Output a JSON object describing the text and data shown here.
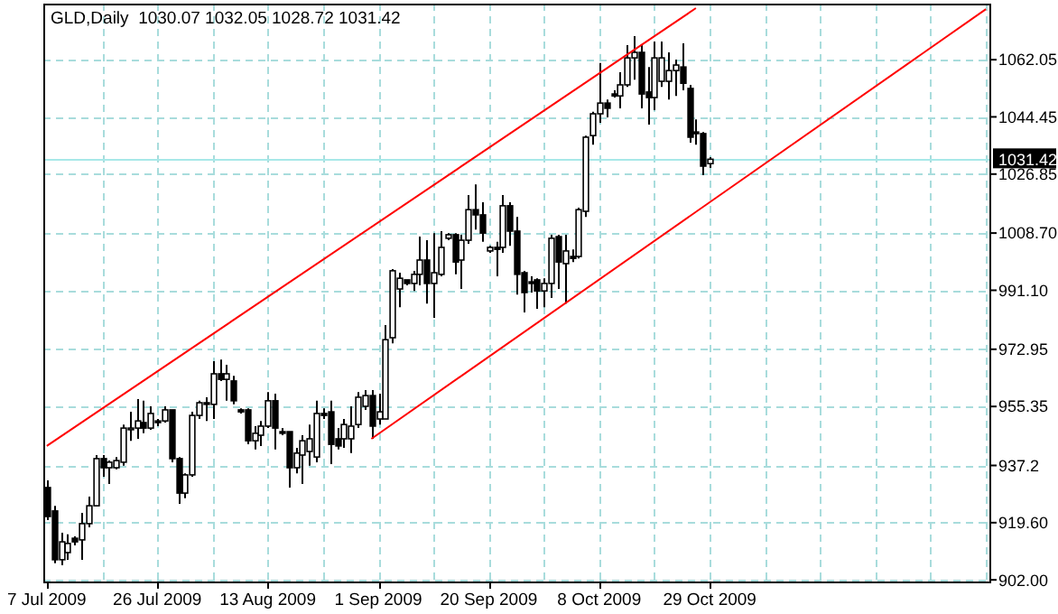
{
  "chart_data": {
    "type": "candlestick",
    "title": "GLD,Daily  1030.07 1032.05 1028.72 1031.42",
    "categories": [
      "7 Jul 2009",
      null,
      null,
      null,
      null,
      null,
      null,
      null,
      null,
      null,
      null,
      null,
      null,
      null,
      null,
      null,
      "26 Jul 2009",
      null,
      null,
      null,
      null,
      null,
      null,
      null,
      null,
      null,
      null,
      null,
      null,
      null,
      null,
      null,
      "13 Aug 2009",
      null,
      null,
      null,
      null,
      null,
      null,
      null,
      null,
      null,
      null,
      null,
      null,
      null,
      null,
      null,
      "1 Sep 2009",
      null,
      null,
      null,
      null,
      null,
      null,
      null,
      null,
      null,
      null,
      null,
      null,
      null,
      null,
      null,
      "20 Sep 2009",
      null,
      null,
      null,
      null,
      null,
      null,
      null,
      null,
      null,
      null,
      null,
      null,
      null,
      null,
      null,
      "8 Oct 2009",
      null,
      null,
      null,
      null,
      null,
      null,
      null,
      null,
      null,
      null,
      null,
      null,
      null,
      null,
      null,
      "29 Oct 2009",
      null,
      null,
      null,
      null,
      null,
      null,
      null,
      null,
      null,
      null,
      null,
      null,
      null,
      null,
      null,
      null,
      null,
      null,
      null,
      null,
      null,
      null,
      null,
      null,
      null,
      null,
      null,
      null,
      null,
      null,
      null,
      null,
      null,
      null,
      null,
      null,
      null,
      null,
      null,
      null
    ],
    "ylim": [
      901.5,
      1079.3
    ],
    "yticks": [
      {
        "value": 902.0,
        "label": "902.00"
      },
      {
        "value": 919.6,
        "label": "919.60"
      },
      937.2,
      {
        "value": 955.35,
        "label": "955.35"
      },
      972.95,
      {
        "value": 991.1,
        "label": "991.10"
      },
      {
        "value": 1008.7,
        "label": "1008.70"
      },
      1026.85,
      1044.45,
      1062.05
    ],
    "grid": true,
    "ref_lines": [
      {
        "axis": "y",
        "value": 1031.42,
        "label": "1031.42",
        "color": "#a8e8e8"
      }
    ],
    "color": "#000000",
    "ohlc": [
      [
        930.4,
        932.6,
        920.4,
        921.5
      ],
      [
        923.2,
        924.8,
        907.1,
        908.2
      ],
      [
        908.2,
        916.5,
        906.5,
        913.7
      ],
      [
        910.4,
        916.0,
        908.2,
        913.2
      ],
      [
        914.8,
        915.4,
        912.6,
        913.7
      ],
      [
        914.3,
        922.6,
        908.2,
        919.3
      ],
      [
        919.3,
        927.6,
        918.2,
        924.8
      ],
      [
        924.8,
        940.4,
        924.8,
        939.3
      ],
      [
        939.3,
        940.4,
        933.7,
        936.5
      ],
      [
        936.5,
        938.7,
        931.5,
        938.2
      ],
      [
        936.5,
        939.8,
        936.0,
        938.7
      ],
      [
        938.2,
        949.8,
        937.1,
        948.7
      ],
      [
        948.2,
        953.7,
        944.8,
        948.7
      ],
      [
        948.7,
        957.6,
        945.4,
        950.9
      ],
      [
        950.4,
        957.1,
        947.1,
        948.7
      ],
      [
        948.7,
        955.4,
        948.2,
        953.2
      ],
      [
        950.9,
        951.5,
        949.3,
        950.4
      ],
      [
        950.9,
        955.4,
        950.4,
        954.3
      ],
      [
        954.3,
        954.3,
        938.2,
        939.3
      ],
      [
        939.3,
        939.8,
        925.4,
        928.7
      ],
      [
        928.7,
        934.8,
        927.1,
        934.3
      ],
      [
        934.3,
        953.7,
        933.7,
        952.6
      ],
      [
        952.6,
        957.1,
        951.5,
        956.5
      ],
      [
        956.5,
        958.2,
        950.9,
        956.0
      ],
      [
        956.0,
        969.3,
        951.5,
        965.4
      ],
      [
        965.4,
        969.8,
        963.2,
        963.7
      ],
      [
        963.7,
        968.2,
        957.1,
        965.4
      ],
      [
        963.2,
        964.8,
        956.0,
        957.1
      ],
      [
        954.3,
        954.8,
        953.2,
        953.7
      ],
      [
        954.3,
        954.8,
        943.7,
        944.8
      ],
      [
        944.8,
        949.3,
        942.1,
        947.1
      ],
      [
        946.5,
        950.9,
        943.2,
        949.3
      ],
      [
        949.3,
        959.8,
        948.7,
        957.1
      ],
      [
        957.1,
        959.3,
        942.1,
        948.7
      ],
      [
        947.6,
        948.7,
        946.5,
        947.1
      ],
      [
        947.6,
        947.6,
        930.4,
        936.5
      ],
      [
        936.5,
        942.6,
        934.8,
        941.0
      ],
      [
        940.4,
        946.5,
        931.5,
        944.8
      ],
      [
        941.5,
        949.8,
        937.1,
        945.4
      ],
      [
        939.8,
        957.1,
        938.2,
        953.2
      ],
      [
        953.2,
        954.8,
        951.5,
        952.6
      ],
      [
        953.7,
        957.1,
        937.6,
        943.7
      ],
      [
        945.4,
        948.7,
        942.1,
        943.2
      ],
      [
        945.4,
        951.5,
        942.6,
        949.8
      ],
      [
        945.4,
        955.4,
        941.0,
        949.3
      ],
      [
        949.8,
        959.8,
        948.7,
        958.2
      ],
      [
        955.4,
        960.4,
        954.3,
        958.7
      ],
      [
        958.7,
        960.4,
        945.4,
        949.3
      ],
      [
        951.5,
        959.3,
        949.8,
        953.7
      ],
      [
        951.5,
        980.4,
        951.5,
        975.9
      ],
      [
        976.5,
        997.6,
        974.8,
        997.1
      ],
      [
        991.5,
        996.5,
        985.9,
        994.8
      ],
      [
        994.3,
        994.3,
        992.6,
        993.2
      ],
      [
        993.2,
        997.1,
        990.9,
        996.0
      ],
      [
        996.0,
        1007.6,
        992.6,
        1000.4
      ],
      [
        1000.4,
        1006.5,
        987.0,
        993.2
      ],
      [
        993.2,
        1008.7,
        982.6,
        996.5
      ],
      [
        996.0,
        1009.3,
        995.4,
        1004.3
      ],
      [
        1007.1,
        1008.7,
        1006.5,
        1008.2
      ],
      [
        1008.2,
        1008.7,
        996.0,
        999.8
      ],
      [
        1000.4,
        1008.2,
        991.5,
        1006.5
      ],
      [
        1006.5,
        1020.4,
        1005.4,
        1015.9
      ],
      [
        1015.9,
        1023.7,
        1009.8,
        1014.3
      ],
      [
        1014.3,
        1018.2,
        1006.0,
        1008.7
      ],
      [
        1003.2,
        1004.8,
        1002.6,
        1004.3
      ],
      [
        1004.3,
        1006.0,
        995.4,
        1003.7
      ],
      [
        1004.3,
        1020.4,
        1002.6,
        1017.1
      ],
      [
        1017.1,
        1018.2,
        1004.8,
        1009.3
      ],
      [
        1009.3,
        1013.7,
        989.8,
        996.0
      ],
      [
        996.5,
        997.1,
        984.3,
        990.4
      ],
      [
        993.7,
        995.4,
        990.4,
        993.2
      ],
      [
        994.3,
        994.8,
        985.4,
        990.9
      ],
      [
        990.9,
        994.8,
        985.9,
        993.2
      ],
      [
        993.2,
        1008.2,
        988.7,
        1007.1
      ],
      [
        1007.6,
        1008.2,
        991.5,
        999.8
      ],
      [
        999.3,
        1008.2,
        987.0,
        1003.2
      ],
      [
        1001.5,
        1003.7,
        999.8,
        1000.9
      ],
      [
        1001.5,
        1016.5,
        1000.9,
        1015.9
      ],
      [
        1015.4,
        1038.7,
        1013.7,
        1038.2
      ],
      [
        1038.7,
        1046.0,
        1035.9,
        1045.4
      ],
      [
        1045.4,
        1061.0,
        1042.6,
        1048.7
      ],
      [
        1048.7,
        1049.8,
        1044.3,
        1047.1
      ],
      [
        1051.5,
        1052.6,
        1050.4,
        1050.9
      ],
      [
        1050.9,
        1058.2,
        1047.1,
        1054.3
      ],
      [
        1054.3,
        1066.5,
        1053.7,
        1062.6
      ],
      [
        1062.6,
        1069.3,
        1055.9,
        1064.3
      ],
      [
        1064.3,
        1066.5,
        1047.1,
        1051.5
      ],
      [
        1052.1,
        1059.8,
        1042.1,
        1050.4
      ],
      [
        1050.4,
        1067.6,
        1046.5,
        1062.6
      ],
      [
        1055.4,
        1067.6,
        1053.7,
        1062.6
      ],
      [
        1055.4,
        1064.3,
        1049.8,
        1058.7
      ],
      [
        1058.7,
        1062.1,
        1050.9,
        1060.4
      ],
      [
        1059.8,
        1067.1,
        1052.6,
        1054.8
      ],
      [
        1053.2,
        1054.3,
        1036.5,
        1038.2
      ],
      [
        1039.8,
        1043.7,
        1035.9,
        1039.3
      ],
      [
        1039.3,
        1039.8,
        1026.5,
        1029.3
      ],
      [
        1030.07,
        1032.05,
        1028.72,
        1031.42
      ],
      null,
      null,
      null,
      null,
      null,
      null,
      null,
      null,
      null,
      null,
      null,
      null,
      null,
      null,
      null,
      null,
      null,
      null,
      null,
      null,
      null,
      null,
      null,
      null,
      null,
      null,
      null,
      null,
      null,
      null,
      null,
      null,
      null,
      null,
      null,
      null,
      null,
      null,
      null,
      null
    ],
    "series": [
      {
        "type": "line",
        "color": "#ff0000",
        "values": [
          943.2,
          null,
          null,
          null,
          null,
          null,
          null,
          null,
          null,
          null,
          null,
          null,
          null,
          null,
          null,
          null,
          null,
          null,
          null,
          null,
          null,
          null,
          null,
          null,
          null,
          null,
          null,
          null,
          null,
          null,
          null,
          null,
          null,
          null,
          null,
          null,
          null,
          null,
          null,
          null,
          null,
          null,
          null,
          null,
          null,
          null,
          null,
          null,
          null,
          null,
          null,
          null,
          null,
          null,
          null,
          null,
          null,
          null,
          null,
          null,
          null,
          null,
          null,
          null,
          null,
          null,
          null,
          null,
          null,
          null,
          null,
          null,
          null,
          null,
          null,
          null,
          null,
          null,
          null,
          null,
          null,
          null,
          null,
          null,
          null,
          null,
          null,
          null,
          null,
          null,
          null,
          null,
          null,
          null,
          1077.9,
          null,
          null,
          null,
          null,
          null,
          null,
          null,
          null,
          null,
          null,
          null,
          null,
          null,
          null,
          null,
          null,
          null,
          null,
          null,
          null,
          null,
          null,
          null,
          null,
          null,
          null,
          null,
          null,
          null,
          null,
          null,
          null,
          null,
          null,
          null,
          null,
          null,
          null,
          null,
          null,
          null,
          null
        ]
      },
      {
        "type": "line",
        "color": "#ff0000",
        "values": [
          null,
          null,
          null,
          null,
          null,
          null,
          null,
          null,
          null,
          null,
          null,
          null,
          null,
          null,
          null,
          null,
          null,
          null,
          null,
          null,
          null,
          null,
          null,
          null,
          null,
          null,
          null,
          null,
          null,
          null,
          null,
          null,
          null,
          null,
          null,
          null,
          null,
          null,
          null,
          null,
          null,
          null,
          null,
          null,
          null,
          null,
          null,
          945.4,
          null,
          null,
          null,
          null,
          null,
          null,
          null,
          null,
          null,
          null,
          null,
          null,
          null,
          null,
          null,
          null,
          null,
          null,
          null,
          null,
          null,
          null,
          null,
          null,
          null,
          null,
          null,
          null,
          null,
          null,
          null,
          null,
          null,
          null,
          null,
          null,
          null,
          null,
          null,
          null,
          null,
          null,
          null,
          null,
          null,
          null,
          null,
          null,
          null,
          null,
          null,
          null,
          null,
          null,
          null,
          null,
          null,
          null,
          null,
          null,
          null,
          null,
          null,
          null,
          null,
          null,
          null,
          null,
          null,
          null,
          null,
          null,
          null,
          null,
          null,
          null,
          null,
          null,
          null,
          null,
          null,
          null,
          null,
          null,
          null,
          null,
          null,
          null,
          1077.6
        ]
      }
    ]
  }
}
